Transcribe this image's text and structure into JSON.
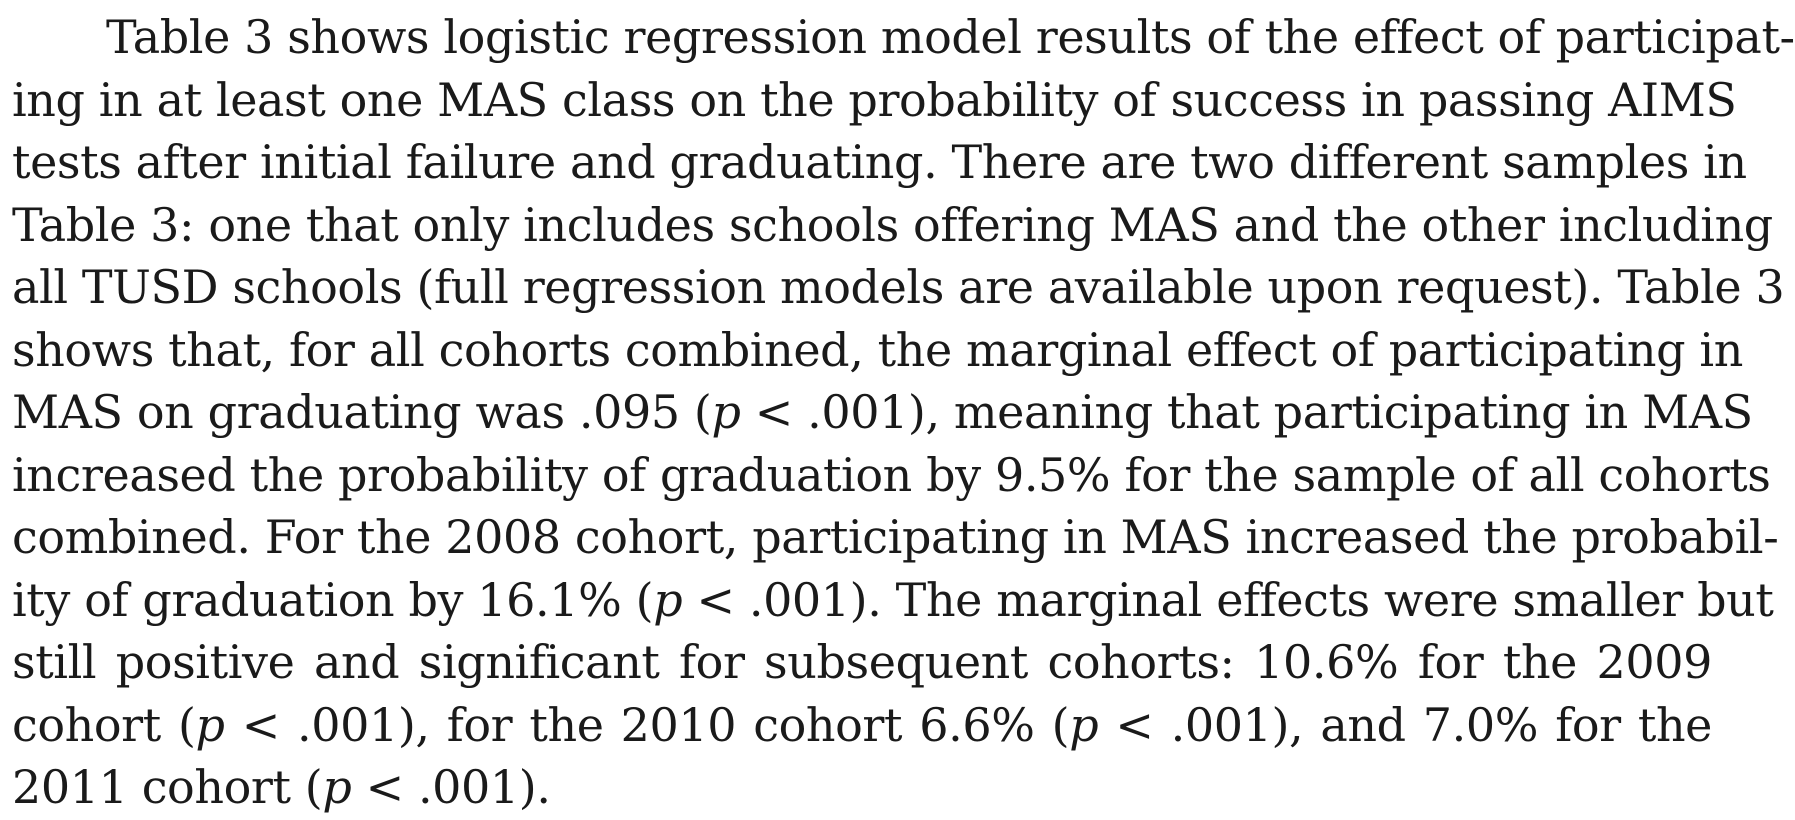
{
  "paragraph": {
    "lines": [
      "Table 3 shows logistic regression model results of the effect of participat-",
      "ing in at least one MAS class on the probability of success in passing AIMS",
      "tests after initial failure and graduating. There are two different samples in",
      "Table 3: one that only includes schools offering MAS and the other including",
      "all TUSD schools (full regression models are available upon request). Table 3",
      "shows that, for all cohorts combined, the marginal effect of participating in",
      "MAS on graduating was .095 (p < .001), meaning that participating in MAS",
      "increased the probability of graduation by 9.5% for the sample of all cohorts",
      "combined. For the 2008 cohort, participating in MAS increased the probabil-",
      "ity of graduation by 16.1% (p < .001). The marginal effects were smaller but",
      "still positive and significant for subsequent cohorts: 10.6% for the 2009",
      "cohort (p < .001), for the 2010 cohort 6.6% (p < .001), and 7.0% for the",
      "2011 cohort (p < .001)."
    ]
  }
}
